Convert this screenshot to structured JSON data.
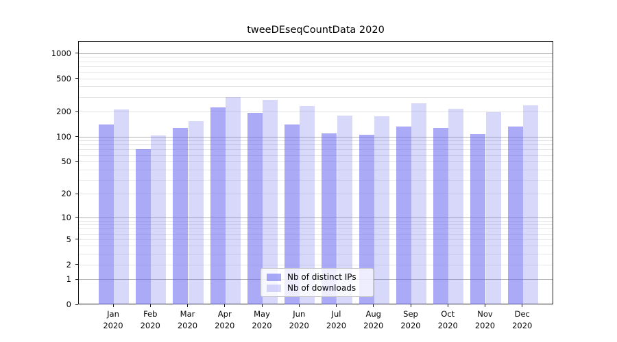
{
  "title": "tweeDEseqCountData 2020",
  "chart_data": {
    "type": "bar",
    "title": "tweeDEseqCountData 2020",
    "xlabel": "",
    "ylabel": "",
    "y_scale": "log1p",
    "ylim": [
      0,
      1400
    ],
    "grid": true,
    "legend_position": "bottom-center-inside",
    "categories": [
      "Jan",
      "Feb",
      "Mar",
      "Apr",
      "May",
      "Jun",
      "Jul",
      "Aug",
      "Sep",
      "Oct",
      "Nov",
      "Dec"
    ],
    "category_year": "2020",
    "y_ticks": [
      0,
      1,
      2,
      5,
      10,
      20,
      50,
      100,
      200,
      500,
      1000
    ],
    "series": [
      {
        "name": "Nb of distinct IPs",
        "color": "rgba(100,100,240,0.55)",
        "values": [
          144,
          72,
          130,
          227,
          197,
          144,
          111,
          108,
          135,
          130,
          109,
          135
        ]
      },
      {
        "name": "Nb of downloads",
        "color": "rgba(100,100,240,0.25)",
        "values": [
          216,
          106,
          156,
          306,
          280,
          238,
          182,
          179,
          258,
          221,
          201,
          242
        ]
      }
    ],
    "grid_colors": {
      "major": "#b0b0b0",
      "minor": "#e6e6e6",
      "major_at": [
        1,
        10,
        100,
        1000
      ],
      "minor_multipliers": [
        2,
        3,
        4,
        5,
        6,
        7,
        8,
        9
      ],
      "minor_decades": [
        1,
        10,
        100
      ]
    }
  }
}
